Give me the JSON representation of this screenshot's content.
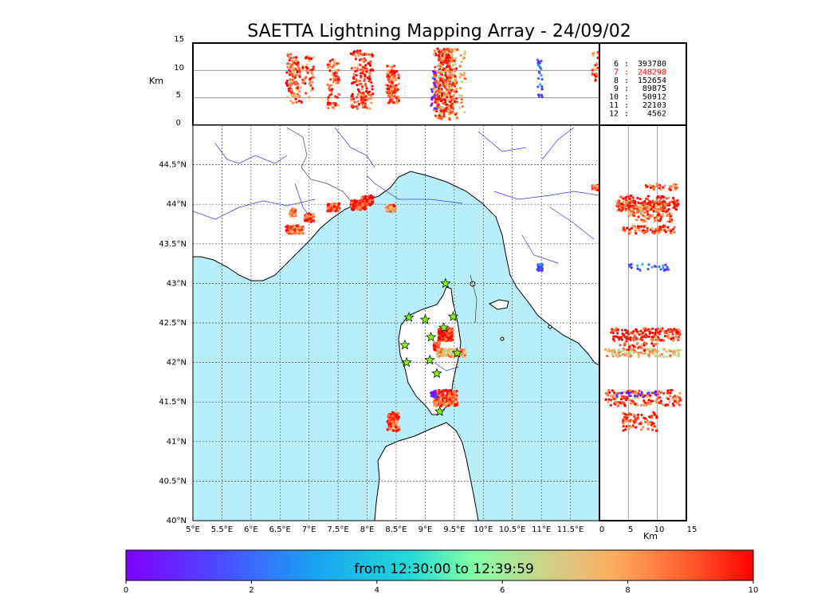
{
  "title": "SAETTA Lightning Mapping Array - 24/09/02",
  "alt_label": "Km",
  "colorbar_label": "from 12:30:00 to 12:39:59",
  "colors": {
    "sea": "#b8eefc",
    "land": "#ffffff",
    "coast": "#000000",
    "river": "#3333ff",
    "grid": "#555555",
    "station": "#7fff00",
    "highlight_count": "#ff0000"
  },
  "chart_data": {
    "type": "scatter",
    "title": "SAETTA Lightning Mapping Array - 24/09/02",
    "map": {
      "lon_range": [
        5,
        12
      ],
      "lat_range": [
        40,
        45
      ],
      "lon_ticks": [
        "5°E",
        "5.5°E",
        "6°E",
        "6.5°E",
        "7°E",
        "7.5°E",
        "8°E",
        "8.5°E",
        "9°E",
        "9.5°E",
        "10°E",
        "10.5°E",
        "11°E",
        "11.5°E"
      ],
      "lat_ticks": [
        "40°N",
        "40.5°N",
        "41°N",
        "41.5°N",
        "42°N",
        "42.5°N",
        "43°N",
        "43.5°N",
        "44°N",
        "44.5°N"
      ],
      "grid": true
    },
    "altitude_axis": {
      "label": "Km",
      "range": [
        0,
        15
      ],
      "ticks": [
        "0",
        "5",
        "10",
        "15"
      ]
    },
    "station_counts": [
      {
        "stations": "6",
        "count": "393780",
        "highlight": false
      },
      {
        "stations": "7",
        "count": "248298",
        "highlight": true
      },
      {
        "stations": "8",
        "count": "152654",
        "highlight": false
      },
      {
        "stations": "9",
        "count": "89875",
        "highlight": false
      },
      {
        "stations": "10",
        "count": "50912",
        "highlight": false
      },
      {
        "stations": "11",
        "count": "22103",
        "highlight": false
      },
      {
        "stations": "12",
        "count": "4562",
        "highlight": false
      }
    ],
    "stations": [
      {
        "lon": 9.35,
        "lat": 43.0
      },
      {
        "lon": 8.72,
        "lat": 42.57
      },
      {
        "lon": 9.0,
        "lat": 42.54
      },
      {
        "lon": 9.48,
        "lat": 42.58
      },
      {
        "lon": 9.1,
        "lat": 42.32
      },
      {
        "lon": 9.32,
        "lat": 42.44
      },
      {
        "lon": 8.65,
        "lat": 42.22
      },
      {
        "lon": 9.08,
        "lat": 42.03
      },
      {
        "lon": 8.68,
        "lat": 42.0
      },
      {
        "lon": 9.55,
        "lat": 42.12
      },
      {
        "lon": 9.2,
        "lat": 41.86
      },
      {
        "lon": 9.25,
        "lat": 41.38
      }
    ],
    "clusters": [
      {
        "lon": 6.75,
        "lat": 43.68,
        "dlon": 0.15,
        "dlat": 0.05,
        "alt": [
          4,
          13
        ],
        "n": 90,
        "time": 9.0
      },
      {
        "lon": 6.72,
        "lat": 43.9,
        "dlon": 0.05,
        "dlat": 0.05,
        "alt": [
          5,
          12
        ],
        "n": 30,
        "time": 8.5
      },
      {
        "lon": 7.0,
        "lat": 43.83,
        "dlon": 0.08,
        "dlat": 0.05,
        "alt": [
          5,
          13
        ],
        "n": 40,
        "time": 8.8
      },
      {
        "lon": 7.42,
        "lat": 43.96,
        "dlon": 0.1,
        "dlat": 0.05,
        "alt": [
          3,
          12
        ],
        "n": 70,
        "time": 9.3
      },
      {
        "lon": 7.85,
        "lat": 43.99,
        "dlon": 0.13,
        "dlat": 0.06,
        "alt": [
          3,
          14
        ],
        "n": 90,
        "time": 9.5
      },
      {
        "lon": 8.0,
        "lat": 44.05,
        "dlon": 0.1,
        "dlat": 0.06,
        "alt": [
          3,
          13
        ],
        "n": 70,
        "time": 9.6
      },
      {
        "lon": 8.4,
        "lat": 43.95,
        "dlon": 0.08,
        "dlat": 0.04,
        "alt": [
          5,
          11
        ],
        "n": 50,
        "time": 8.5
      },
      {
        "lon": 8.45,
        "lat": 41.25,
        "dlon": 0.1,
        "dlat": 0.12,
        "alt": [
          4,
          10
        ],
        "n": 80,
        "time": 9.2
      },
      {
        "lon": 9.35,
        "lat": 42.35,
        "dlon": 0.12,
        "dlat": 0.08,
        "alt": [
          2,
          14
        ],
        "n": 160,
        "time": 9.6
      },
      {
        "lon": 9.45,
        "lat": 42.12,
        "dlon": 0.25,
        "dlat": 0.05,
        "alt": [
          1,
          14
        ],
        "n": 120,
        "time": 7.5
      },
      {
        "lon": 9.2,
        "lat": 42.2,
        "dlon": 0.05,
        "dlat": 0.05,
        "alt": [
          3,
          10
        ],
        "n": 30,
        "time": 9.0
      },
      {
        "lon": 9.35,
        "lat": 41.55,
        "dlon": 0.2,
        "dlat": 0.1,
        "alt": [
          1,
          14
        ],
        "n": 160,
        "time": 9.0
      },
      {
        "lon": 9.15,
        "lat": 41.6,
        "dlon": 0.05,
        "dlat": 0.04,
        "alt": [
          3,
          10
        ],
        "n": 20,
        "time": 0.8
      },
      {
        "lon": 10.98,
        "lat": 43.2,
        "dlon": 0.05,
        "dlat": 0.04,
        "alt": [
          5,
          12
        ],
        "n": 25,
        "time": 2.0
      },
      {
        "lon": 11.95,
        "lat": 44.22,
        "dlon": 0.07,
        "dlat": 0.04,
        "alt": [
          8,
          14
        ],
        "n": 40,
        "time": 9.0
      }
    ],
    "colorbar": {
      "label": "from 12:30:00 to 12:39:59",
      "range": [
        0,
        10
      ],
      "ticks": [
        "0",
        "2",
        "4",
        "6",
        "8",
        "10"
      ]
    }
  }
}
